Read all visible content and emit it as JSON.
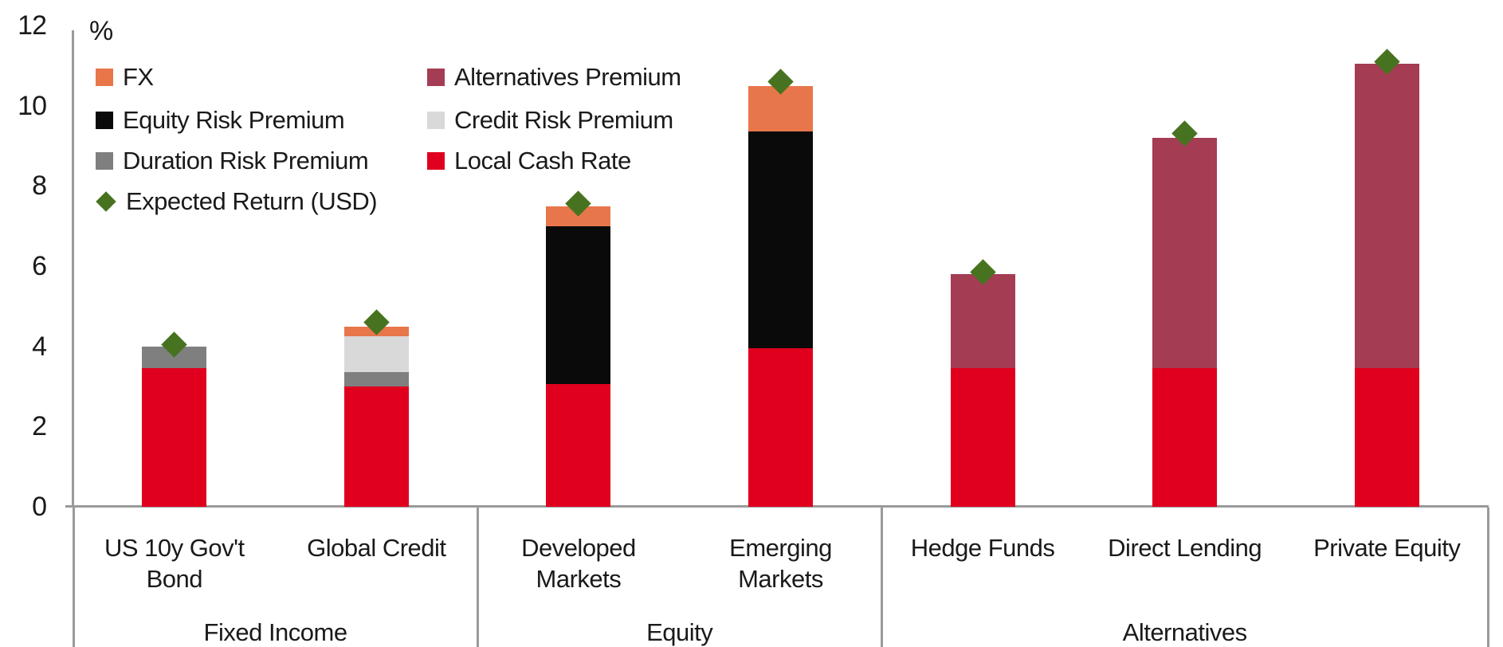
{
  "chart": {
    "unit_label": "%"
  },
  "legend": {
    "items": [
      {
        "label": "FX",
        "series": "fx",
        "shape": "square",
        "column": 0,
        "row": 0
      },
      {
        "label": "Equity Risk Premium",
        "series": "equity_risk_premium",
        "shape": "square",
        "column": 0,
        "row": 1
      },
      {
        "label": "Duration Risk Premium",
        "series": "duration_risk_premium",
        "shape": "square",
        "column": 0,
        "row": 2
      },
      {
        "label": "Expected Return (USD)",
        "series": "expected_return",
        "shape": "diamond",
        "column": 0,
        "row": 3
      },
      {
        "label": "Alternatives Premium",
        "series": "alternatives_premium",
        "shape": "square",
        "column": 1,
        "row": 0
      },
      {
        "label": "Credit Risk Premium",
        "series": "credit_risk_premium",
        "shape": "square",
        "column": 1,
        "row": 1
      },
      {
        "label": "Local Cash Rate",
        "series": "local_cash_rate",
        "shape": "square",
        "column": 1,
        "row": 2
      }
    ]
  },
  "chart_data": {
    "type": "bar",
    "subtype": "stacked_bar_with_diamond_markers",
    "ylabel": "%",
    "ylim": [
      0,
      12
    ],
    "y_ticks": [
      0,
      2,
      4,
      6,
      8,
      10,
      12
    ],
    "grid": false,
    "legend_position": "top-left-inside",
    "series_colors": {
      "fx": "#E8764B",
      "equity_risk_premium": "#0A0A0A",
      "duration_risk_premium": "#7F7F7F",
      "alternatives_premium": "#A43C54",
      "credit_risk_premium": "#D9D9D9",
      "local_cash_rate": "#E0001E",
      "expected_return": "#477320"
    },
    "bars": [
      {
        "category": "US 10y Gov't Bond",
        "category_lines": [
          "US 10y Gov't",
          "Bond"
        ],
        "group": "Fixed Income",
        "segments": [
          {
            "series": "local_cash_rate",
            "label": "Local Cash Rate",
            "value": 3.45
          },
          {
            "series": "duration_risk_premium",
            "label": "Duration Risk Premium",
            "value": 0.55
          }
        ],
        "total": 4.0,
        "expected_return_usd": 4.05
      },
      {
        "category": "Global Credit",
        "category_lines": [
          "Global Credit"
        ],
        "group": "Fixed Income",
        "segments": [
          {
            "series": "local_cash_rate",
            "label": "Local Cash Rate",
            "value": 3.0
          },
          {
            "series": "duration_risk_premium",
            "label": "Duration Risk Premium",
            "value": 0.35
          },
          {
            "series": "credit_risk_premium",
            "label": "Credit Risk Premium",
            "value": 0.9
          },
          {
            "series": "fx",
            "label": "FX",
            "value": 0.25
          }
        ],
        "total": 4.5,
        "expected_return_usd": 4.6
      },
      {
        "category": "Developed Markets",
        "category_lines": [
          "Developed",
          "Markets"
        ],
        "group": "Equity",
        "segments": [
          {
            "series": "local_cash_rate",
            "label": "Local Cash Rate",
            "value": 3.05
          },
          {
            "series": "equity_risk_premium",
            "label": "Equity Risk Premium",
            "value": 3.95
          },
          {
            "series": "fx",
            "label": "FX",
            "value": 0.5
          }
        ],
        "total": 7.5,
        "expected_return_usd": 7.55
      },
      {
        "category": "Emerging Markets",
        "category_lines": [
          "Emerging",
          "Markets"
        ],
        "group": "Equity",
        "segments": [
          {
            "series": "local_cash_rate",
            "label": "Local Cash Rate",
            "value": 3.95
          },
          {
            "series": "equity_risk_premium",
            "label": "Equity Risk Premium",
            "value": 5.4
          },
          {
            "series": "fx",
            "label": "FX",
            "value": 1.15
          }
        ],
        "total": 10.5,
        "expected_return_usd": 10.6
      },
      {
        "category": "Hedge Funds",
        "category_lines": [
          "Hedge Funds"
        ],
        "group": "Alternatives",
        "segments": [
          {
            "series": "local_cash_rate",
            "label": "Local Cash Rate",
            "value": 3.45
          },
          {
            "series": "alternatives_premium",
            "label": "Alternatives Premium",
            "value": 2.35
          }
        ],
        "total": 5.8,
        "expected_return_usd": 5.85
      },
      {
        "category": "Direct Lending",
        "category_lines": [
          "Direct Lending"
        ],
        "group": "Alternatives",
        "segments": [
          {
            "series": "local_cash_rate",
            "label": "Local Cash Rate",
            "value": 3.45
          },
          {
            "series": "alternatives_premium",
            "label": "Alternatives Premium",
            "value": 5.75
          }
        ],
        "total": 9.2,
        "expected_return_usd": 9.3
      },
      {
        "category": "Private Equity",
        "category_lines": [
          "Private Equity"
        ],
        "group": "Alternatives",
        "segments": [
          {
            "series": "local_cash_rate",
            "label": "Local Cash Rate",
            "value": 3.45
          },
          {
            "series": "alternatives_premium",
            "label": "Alternatives Premium",
            "value": 7.6
          }
        ],
        "total": 11.05,
        "expected_return_usd": 11.1
      }
    ],
    "groups": [
      {
        "label": "Fixed Income",
        "bar_span": [
          0,
          2
        ]
      },
      {
        "label": "Equity",
        "bar_span": [
          2,
          4
        ]
      },
      {
        "label": "Alternatives",
        "bar_span": [
          4,
          7
        ]
      }
    ]
  },
  "colors": {
    "axis_line": "#9a9a9a",
    "text": "#1a1a1a",
    "background": "#ffffff"
  }
}
